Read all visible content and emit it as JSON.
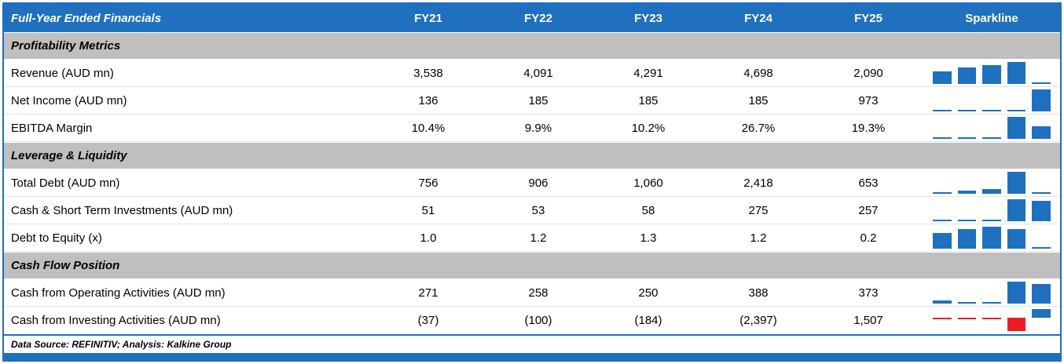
{
  "header": {
    "title": "Full-Year Ended Financials",
    "sparkline_label": "Sparkline"
  },
  "chart_data": {
    "type": "table",
    "columns": [
      "FY21",
      "FY22",
      "FY23",
      "FY24",
      "FY25"
    ],
    "sparkline_type": "bar",
    "sections": [
      {
        "label": "Profitability Metrics",
        "rows": [
          {
            "label": "Revenue (AUD mn)",
            "display": [
              "3,538",
              "4,091",
              "4,291",
              "4,698",
              "2,090"
            ],
            "values": [
              3538,
              4091,
              4291,
              4698,
              2090
            ]
          },
          {
            "label": "Net Income (AUD mn)",
            "display": [
              "136",
              "185",
              "185",
              "185",
              "973"
            ],
            "values": [
              136,
              185,
              185,
              185,
              973
            ]
          },
          {
            "label": "EBITDA Margin",
            "display": [
              "10.4%",
              "9.9%",
              "10.2%",
              "26.7%",
              "19.3%"
            ],
            "values": [
              10.4,
              9.9,
              10.2,
              26.7,
              19.3
            ]
          }
        ]
      },
      {
        "label": "Leverage & Liquidity",
        "rows": [
          {
            "label": "Total Debt (AUD mn)",
            "display": [
              "756",
              "906",
              "1,060",
              "2,418",
              "653"
            ],
            "values": [
              756,
              906,
              1060,
              2418,
              653
            ]
          },
          {
            "label": "Cash & Short Term Investments (AUD mn)",
            "display": [
              "51",
              "53",
              "58",
              "275",
              "257"
            ],
            "values": [
              51,
              53,
              58,
              275,
              257
            ]
          },
          {
            "label": "Debt to Equity (x)",
            "display": [
              "1.0",
              "1.2",
              "1.3",
              "1.2",
              "0.2"
            ],
            "values": [
              1.0,
              1.2,
              1.3,
              1.2,
              0.2
            ]
          }
        ]
      },
      {
        "label": "Cash Flow Position",
        "rows": [
          {
            "label": "Cash from Operating Activities (AUD mn)",
            "display": [
              "271",
              "258",
              "250",
              "388",
              "373"
            ],
            "values": [
              271,
              258,
              250,
              388,
              373
            ]
          },
          {
            "label": "Cash from Investing Activities (AUD mn)",
            "display": [
              "(37)",
              "(100)",
              "(184)",
              "(2,397)",
              "1,507"
            ],
            "values": [
              -37,
              -100,
              -184,
              -2397,
              1507
            ]
          }
        ]
      }
    ]
  },
  "footer": {
    "text": "Data Source: REFINITIV; Analysis: Kalkine Group"
  },
  "colors": {
    "header_bg": "#1F70BE",
    "section_bg": "#BFBFBF",
    "positive_bar": "#1F70BE",
    "negative_bar": "#ED1C24",
    "border": "#1F70BE"
  }
}
